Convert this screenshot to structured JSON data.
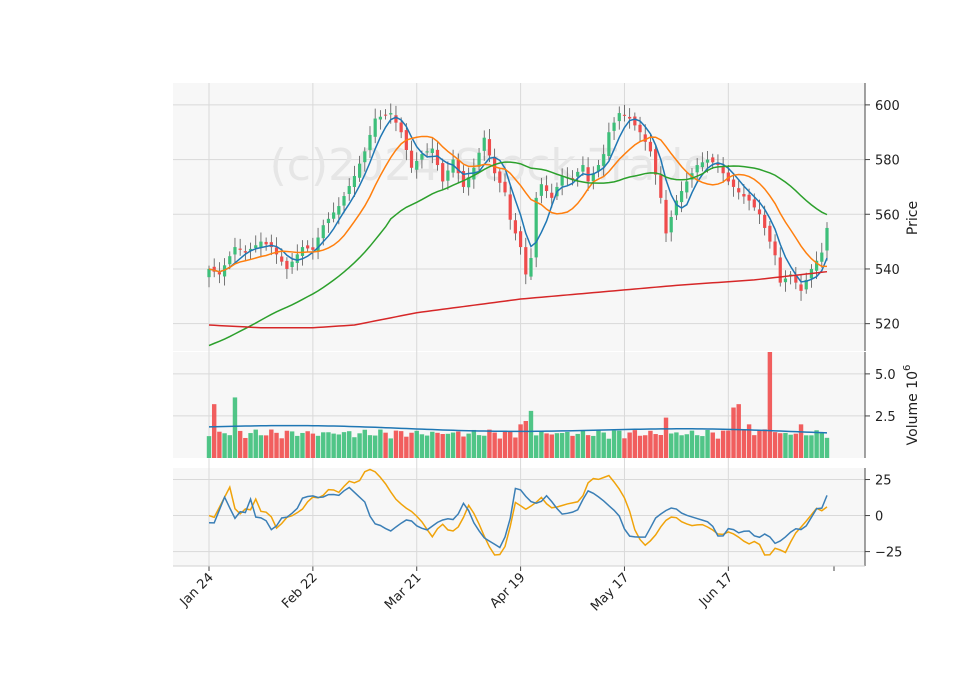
{
  "chart_data": {
    "type": "candlestick",
    "watermark": "(c)2024 Stock Trade",
    "x_ticks": [
      "Jan 24",
      "Feb 22",
      "Mar 21",
      "Apr 19",
      "May 17",
      "Jun 17"
    ],
    "x_tick_index": [
      0,
      20,
      40,
      60,
      80,
      100
    ],
    "n": 120,
    "price_panel": {
      "ylabel": "Price",
      "ylim": [
        510,
        608
      ],
      "yticks": [
        520,
        540,
        560,
        580,
        600
      ],
      "keypoints_close": [
        [
          0,
          540
        ],
        [
          2,
          538
        ],
        [
          5,
          548
        ],
        [
          7,
          546
        ],
        [
          10,
          550
        ],
        [
          12,
          548
        ],
        [
          15,
          540
        ],
        [
          18,
          548
        ],
        [
          20,
          547
        ],
        [
          22,
          556
        ],
        [
          25,
          563
        ],
        [
          28,
          574
        ],
        [
          30,
          583
        ],
        [
          32,
          595
        ],
        [
          35,
          597
        ],
        [
          37,
          590
        ],
        [
          39,
          577
        ],
        [
          41,
          582
        ],
        [
          43,
          584
        ],
        [
          45,
          572
        ],
        [
          47,
          580
        ],
        [
          49,
          570
        ],
        [
          51,
          577
        ],
        [
          53,
          588
        ],
        [
          55,
          575
        ],
        [
          57,
          568
        ],
        [
          58,
          558
        ],
        [
          60,
          548
        ],
        [
          61,
          538
        ],
        [
          62,
          544
        ],
        [
          63,
          566
        ],
        [
          64,
          571
        ],
        [
          66,
          566
        ],
        [
          68,
          574
        ],
        [
          70,
          573
        ],
        [
          72,
          578
        ],
        [
          73,
          572
        ],
        [
          75,
          578
        ],
        [
          76,
          582
        ],
        [
          77,
          590
        ],
        [
          79,
          597
        ],
        [
          81,
          595
        ],
        [
          83,
          590
        ],
        [
          85,
          583
        ],
        [
          87,
          566
        ],
        [
          88,
          553
        ],
        [
          90,
          565
        ],
        [
          92,
          572
        ],
        [
          94,
          578
        ],
        [
          96,
          580
        ],
        [
          98,
          578
        ],
        [
          100,
          572
        ],
        [
          102,
          568
        ],
        [
          104,
          565
        ],
        [
          106,
          560
        ],
        [
          107,
          555
        ],
        [
          109,
          545
        ],
        [
          110,
          535
        ],
        [
          112,
          538
        ],
        [
          114,
          532
        ],
        [
          116,
          540
        ],
        [
          118,
          546
        ],
        [
          119,
          555
        ]
      ],
      "overlays": [
        {
          "name": "ma-short",
          "color": "#1f77b4",
          "window": 5
        },
        {
          "name": "ma-mid",
          "color": "#ff7f0e",
          "window": 12
        },
        {
          "name": "ma-long",
          "color": "#2ca02c",
          "window": 35,
          "start_value": 512
        },
        {
          "name": "ma-longest",
          "color": "#d62728",
          "keypoints": [
            [
              0,
              519.5
            ],
            [
              10,
              518.5
            ],
            [
              20,
              518.5
            ],
            [
              28,
              519.5
            ],
            [
              40,
              524
            ],
            [
              60,
              529
            ],
            [
              75,
              531.5
            ],
            [
              90,
              534
            ],
            [
              105,
              536
            ],
            [
              119,
              539
            ]
          ]
        }
      ],
      "colors": {
        "up": "#3dbf7a",
        "down": "#ef4c4c"
      }
    },
    "volume_panel": {
      "ylabel": "Volume  10",
      "ylabel_exponent": "6",
      "ylim": [
        0,
        6.3
      ],
      "yticks": [
        2.5,
        5.0
      ],
      "ytick_labels": [
        "2.5",
        "5.0"
      ],
      "spikes": {
        "1": 3.2,
        "5": 3.6,
        "60": 2.0,
        "61": 2.2,
        "62": 2.8,
        "88": 2.4,
        "101": 3.0,
        "102": 3.2,
        "104": 2.0,
        "107": 1.7,
        "108": 6.3,
        "114": 2.0
      },
      "ma_line": {
        "color": "#1f77b4",
        "start": 1.85,
        "end": 1.55
      },
      "colors": {
        "up": "#3dbf7a",
        "down": "#ef4c4c"
      }
    },
    "oscillator_panel": {
      "ylim": [
        -35,
        33
      ],
      "yticks": [
        -25,
        0,
        25
      ],
      "ytick_labels": [
        "−25",
        "0",
        "25"
      ],
      "series": [
        {
          "name": "line-blue",
          "color": "#3b7fb6",
          "keypoints": [
            [
              0,
              -5
            ],
            [
              1,
              -6
            ],
            [
              4,
              18
            ],
            [
              5,
              -9
            ],
            [
              6,
              3
            ],
            [
              8,
              2
            ],
            [
              9,
              12
            ],
            [
              10,
              -1
            ],
            [
              12,
              -2
            ],
            [
              14,
              -13
            ],
            [
              15,
              -2
            ],
            [
              17,
              -1
            ],
            [
              19,
              5
            ],
            [
              20,
              12
            ],
            [
              22,
              14
            ],
            [
              24,
              12
            ],
            [
              26,
              15
            ],
            [
              28,
              14
            ],
            [
              30,
              20
            ],
            [
              32,
              14
            ],
            [
              34,
              8
            ],
            [
              35,
              -5
            ],
            [
              37,
              -7
            ],
            [
              39,
              -11
            ],
            [
              41,
              -6
            ],
            [
              43,
              -2
            ],
            [
              45,
              -8
            ],
            [
              47,
              -10
            ],
            [
              49,
              -5
            ],
            [
              51,
              -2
            ],
            [
              53,
              -3
            ],
            [
              55,
              10
            ],
            [
              57,
              -5
            ],
            [
              59,
              -15
            ],
            [
              61,
              -19
            ],
            [
              63,
              -23
            ],
            [
              65,
              0
            ],
            [
              66,
              20
            ],
            [
              67,
              18
            ],
            [
              69,
              10
            ],
            [
              71,
              8
            ],
            [
              73,
              15
            ],
            [
              74,
              8
            ],
            [
              76,
              1
            ],
            [
              78,
              2
            ],
            [
              80,
              5
            ],
            [
              81,
              18
            ],
            [
              83,
              15
            ],
            [
              85,
              10
            ],
            [
              87,
              4
            ],
            [
              88,
              2
            ],
            [
              90,
              -14
            ],
            [
              92,
              -15
            ],
            [
              94,
              -15
            ],
            [
              96,
              -2
            ],
            [
              98,
              3
            ],
            [
              100,
              6
            ],
            [
              102,
              1
            ],
            [
              104,
              -1
            ],
            [
              106,
              -3
            ],
            [
              108,
              -5
            ],
            [
              110,
              -17
            ],
            [
              112,
              -8
            ],
            [
              114,
              -12
            ],
            [
              116,
              -10
            ],
            [
              118,
              -16
            ],
            [
              120,
              -12
            ],
            [
              122,
              -20
            ],
            [
              124,
              -15
            ],
            [
              126,
              -9
            ],
            [
              128,
              -10
            ],
            [
              131,
              6
            ],
            [
              132,
              5
            ],
            [
              133,
              14
            ]
          ]
        },
        {
          "name": "line-orange",
          "color": "#f0a30a",
          "keypoints": [
            [
              0,
              0
            ],
            [
              1,
              -2
            ],
            [
              5,
              23
            ],
            [
              6,
              -8
            ],
            [
              7,
              5
            ],
            [
              9,
              4
            ],
            [
              10,
              12
            ],
            [
              11,
              3
            ],
            [
              13,
              2
            ],
            [
              15,
              -12
            ],
            [
              16,
              -2
            ],
            [
              18,
              0
            ],
            [
              20,
              4
            ],
            [
              22,
              13
            ],
            [
              24,
              12
            ],
            [
              26,
              19
            ],
            [
              28,
              16
            ],
            [
              30,
              24
            ],
            [
              32,
              22
            ],
            [
              34,
              33
            ],
            [
              36,
              30
            ],
            [
              38,
              22
            ],
            [
              40,
              12
            ],
            [
              42,
              6
            ],
            [
              44,
              2
            ],
            [
              46,
              -5
            ],
            [
              48,
              -15
            ],
            [
              50,
              -5
            ],
            [
              52,
              -12
            ],
            [
              54,
              -7
            ],
            [
              56,
              8
            ],
            [
              58,
              -5
            ],
            [
              60,
              -20
            ],
            [
              62,
              -30
            ],
            [
              64,
              -20
            ],
            [
              66,
              10
            ],
            [
              68,
              4
            ],
            [
              70,
              8
            ],
            [
              72,
              14
            ],
            [
              73,
              5
            ],
            [
              75,
              6
            ],
            [
              77,
              8
            ],
            [
              80,
              10
            ],
            [
              82,
              26
            ],
            [
              84,
              25
            ],
            [
              86,
              28
            ],
            [
              88,
              20
            ],
            [
              90,
              9
            ],
            [
              92,
              -14
            ],
            [
              94,
              -21
            ],
            [
              96,
              -14
            ],
            [
              98,
              -4
            ],
            [
              100,
              0
            ],
            [
              102,
              -5
            ],
            [
              104,
              -7
            ],
            [
              106,
              -6
            ],
            [
              108,
              -9
            ],
            [
              110,
              -14
            ],
            [
              112,
              -11
            ],
            [
              114,
              -15
            ],
            [
              116,
              -20
            ],
            [
              118,
              -17
            ],
            [
              120,
              -30
            ],
            [
              122,
              -22
            ],
            [
              124,
              -26
            ],
            [
              126,
              -13
            ],
            [
              128,
              -6
            ],
            [
              131,
              6
            ],
            [
              132,
              3
            ],
            [
              133,
              6
            ]
          ]
        }
      ]
    }
  }
}
